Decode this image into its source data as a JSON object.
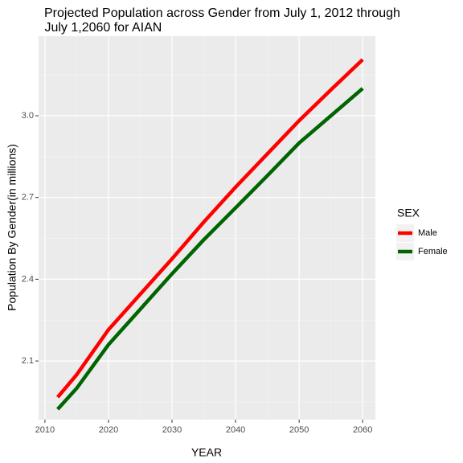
{
  "chart_data": {
    "type": "line",
    "title": [
      "Projected Population across Gender from July 1, 2012 through",
      " July 1,2060 for AIAN"
    ],
    "x_label": "YEAR",
    "y_label": "Population By Gender(in millions)",
    "x": [
      2012,
      2015,
      2020,
      2025,
      2030,
      2035,
      2040,
      2045,
      2050,
      2055,
      2060
    ],
    "series": [
      {
        "name": "Male",
        "color": "#ff0000",
        "values": [
          1.967,
          2.05,
          2.215,
          2.345,
          2.475,
          2.61,
          2.738,
          2.86,
          2.982,
          3.095,
          3.206
        ]
      },
      {
        "name": "Female",
        "color": "#006400",
        "values": [
          1.923,
          2.0,
          2.16,
          2.29,
          2.42,
          2.545,
          2.662,
          2.78,
          2.9,
          3.0,
          3.1
        ]
      }
    ],
    "legend_title": "SEX",
    "xlim": [
      2009,
      2062
    ],
    "xticks": [
      2010,
      2020,
      2030,
      2040,
      2050,
      2060
    ],
    "ylim": [
      1.885,
      3.292
    ],
    "yticks": [
      {
        "value": 2.1,
        "label": "2.1"
      },
      {
        "value": 2.4,
        "label": "2.4"
      },
      {
        "value": 2.7,
        "label": "2.7"
      },
      {
        "value": 3.0,
        "label": "3.0"
      }
    ],
    "grid": true,
    "legend": "right"
  }
}
